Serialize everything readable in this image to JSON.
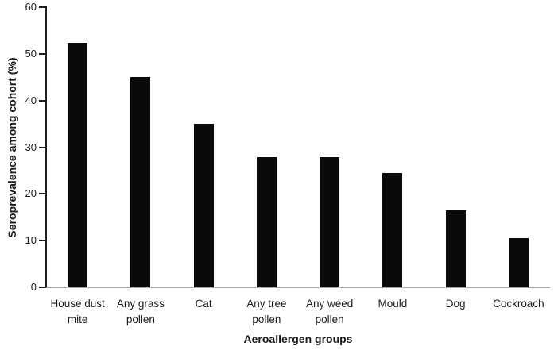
{
  "chart_data": {
    "type": "bar",
    "title": "",
    "xlabel": "Aeroallergen groups",
    "ylabel": "Seroprevalence among cohort (%)",
    "categories": [
      "House dust mite",
      "Any grass pollen",
      "Cat",
      "Any tree pollen",
      "Any weed pollen",
      "Mould",
      "Dog",
      "Cockroach"
    ],
    "category_label_lines": [
      [
        "House dust",
        "mite"
      ],
      [
        "Any grass",
        "pollen"
      ],
      [
        "Cat"
      ],
      [
        "Any tree",
        "pollen"
      ],
      [
        "Any weed",
        "pollen"
      ],
      [
        "Mould"
      ],
      [
        "Dog"
      ],
      [
        "Cockroach"
      ]
    ],
    "values": [
      52.3,
      45.0,
      35.0,
      27.9,
      27.9,
      24.5,
      16.5,
      10.5
    ],
    "ylim": [
      0,
      60
    ],
    "yticks": [
      0,
      10,
      20,
      30,
      40,
      50,
      60
    ],
    "grid": false,
    "legend": false,
    "colors": {
      "bar": "#0a0a0a",
      "y_axis": "#1f1f1f",
      "x_axis": "#a6a6a6",
      "text": "#1a1a1a"
    }
  }
}
